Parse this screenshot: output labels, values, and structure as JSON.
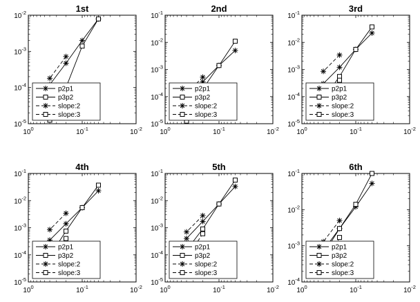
{
  "chart_data": {
    "type": "line",
    "layout": "2x3",
    "x_scale": "log",
    "y_scale": "log",
    "x_reversed": true,
    "grid": false,
    "legend_position": "bottom-left",
    "x_ticks": [
      {
        "value": 1,
        "base": "10",
        "exp": "0"
      },
      {
        "value": 0.1,
        "base": "10",
        "exp": "-1"
      },
      {
        "value": 0.01,
        "base": "10",
        "exp": "-2"
      }
    ],
    "legend": [
      {
        "label": "p2p1",
        "marker": "star",
        "line": "solid"
      },
      {
        "label": "p3p2",
        "marker": "square",
        "line": "solid"
      },
      {
        "label": "slope:2",
        "marker": "star",
        "line": "dashed"
      },
      {
        "label": "slope:3",
        "marker": "square",
        "line": "dashed"
      }
    ],
    "x": [
      0.05,
      0.1,
      0.2,
      0.4
    ],
    "panels": [
      {
        "title": "1st",
        "ylim": [
          1e-05,
          0.01
        ],
        "y_ticks": [
          {
            "value": 1e-05,
            "base": "10",
            "exp": "-5"
          },
          {
            "value": 0.0001,
            "base": "10",
            "exp": "-4"
          },
          {
            "value": 0.001,
            "base": "10",
            "exp": "-3"
          },
          {
            "value": 0.01,
            "base": "10",
            "exp": "-2"
          }
        ],
        "series": [
          {
            "name": "p2p1",
            "x": [
              0.05,
              0.1,
              0.2,
              0.4
            ],
            "y": [
              0.0079,
              0.002,
              0.00047,
              0.00012
            ]
          },
          {
            "name": "p3p2",
            "x": [
              0.05,
              0.1,
              0.2,
              0.4
            ],
            "y": [
              0.0079,
              0.0014,
              0.0001,
              2.2e-05
            ]
          },
          {
            "name": "slope:2",
            "x": [
              0.2,
              0.4
            ],
            "y": [
              0.00072,
              0.00018
            ]
          },
          {
            "name": "slope:3",
            "x": [
              0.2,
              0.4
            ],
            "y": [
              0.0001,
              1.25e-05
            ]
          }
        ]
      },
      {
        "title": "2nd",
        "ylim": [
          1e-05,
          0.1
        ],
        "y_ticks": [
          {
            "value": 1e-05,
            "base": "10",
            "exp": "-5"
          },
          {
            "value": 0.0001,
            "base": "10",
            "exp": "-4"
          },
          {
            "value": 0.001,
            "base": "10",
            "exp": "-3"
          },
          {
            "value": 0.01,
            "base": "10",
            "exp": "-2"
          },
          {
            "value": 0.1,
            "base": "10",
            "exp": "-1"
          }
        ],
        "series": [
          {
            "name": "p2p1",
            "x": [
              0.05,
              0.1,
              0.2,
              0.4
            ],
            "y": [
              0.005,
              0.0014,
              0.00035,
              9e-05
            ]
          },
          {
            "name": "p3p2",
            "x": [
              0.05,
              0.1,
              0.2,
              0.4
            ],
            "y": [
              0.011,
              0.0014,
              0.00019,
              2.4e-05
            ]
          },
          {
            "name": "slope:2",
            "x": [
              0.2,
              0.4
            ],
            "y": [
              0.00052,
              0.00013
            ]
          },
          {
            "name": "slope:3",
            "x": [
              0.2,
              0.4
            ],
            "y": [
              0.0001,
              1.25e-05
            ]
          }
        ]
      },
      {
        "title": "3rd",
        "ylim": [
          1e-05,
          0.1
        ],
        "y_ticks": [
          {
            "value": 1e-05,
            "base": "10",
            "exp": "-5"
          },
          {
            "value": 0.0001,
            "base": "10",
            "exp": "-4"
          },
          {
            "value": 0.001,
            "base": "10",
            "exp": "-3"
          },
          {
            "value": 0.01,
            "base": "10",
            "exp": "-2"
          },
          {
            "value": 0.1,
            "base": "10",
            "exp": "-1"
          }
        ],
        "series": [
          {
            "name": "p2p1",
            "x": [
              0.05,
              0.1,
              0.2,
              0.4
            ],
            "y": [
              0.022,
              0.0055,
              0.0012,
              0.0003
            ]
          },
          {
            "name": "p3p2",
            "x": [
              0.05,
              0.1,
              0.2,
              0.4
            ],
            "y": [
              0.037,
              0.0055,
              0.00055,
              8e-05
            ]
          },
          {
            "name": "slope:2",
            "x": [
              0.2,
              0.4
            ],
            "y": [
              0.0034,
              0.00085
            ]
          },
          {
            "name": "slope:3",
            "x": [
              0.2,
              0.4
            ],
            "y": [
              0.0004,
              5e-05
            ]
          }
        ]
      },
      {
        "title": "4th",
        "ylim": [
          1e-05,
          0.1
        ],
        "y_ticks": [
          {
            "value": 1e-05,
            "base": "10",
            "exp": "-5"
          },
          {
            "value": 0.0001,
            "base": "10",
            "exp": "-4"
          },
          {
            "value": 0.001,
            "base": "10",
            "exp": "-3"
          },
          {
            "value": 0.01,
            "base": "10",
            "exp": "-2"
          },
          {
            "value": 0.1,
            "base": "10",
            "exp": "-1"
          }
        ],
        "series": [
          {
            "name": "p2p1",
            "x": [
              0.05,
              0.1,
              0.2,
              0.4
            ],
            "y": [
              0.023,
              0.0055,
              0.0014,
              0.00035
            ]
          },
          {
            "name": "p3p2",
            "x": [
              0.05,
              0.1,
              0.2,
              0.4
            ],
            "y": [
              0.037,
              0.0055,
              0.00075,
              9e-05
            ]
          },
          {
            "name": "slope:2",
            "x": [
              0.2,
              0.4
            ],
            "y": [
              0.0034,
              0.00085
            ]
          },
          {
            "name": "slope:3",
            "x": [
              0.2,
              0.4
            ],
            "y": [
              0.0004,
              5e-05
            ]
          }
        ]
      },
      {
        "title": "5th",
        "ylim": [
          1e-05,
          0.1
        ],
        "y_ticks": [
          {
            "value": 1e-05,
            "base": "10",
            "exp": "-5"
          },
          {
            "value": 0.0001,
            "base": "10",
            "exp": "-4"
          },
          {
            "value": 0.001,
            "base": "10",
            "exp": "-3"
          },
          {
            "value": 0.01,
            "base": "10",
            "exp": "-2"
          },
          {
            "value": 0.1,
            "base": "10",
            "exp": "-1"
          }
        ],
        "series": [
          {
            "name": "p2p1",
            "x": [
              0.05,
              0.1,
              0.2,
              0.4
            ],
            "y": [
              0.033,
              0.0075,
              0.0017,
              0.0004
            ]
          },
          {
            "name": "p3p2",
            "x": [
              0.05,
              0.1,
              0.2,
              0.4
            ],
            "y": [
              0.057,
              0.0075,
              0.0009,
              0.00015
            ]
          },
          {
            "name": "slope:2",
            "x": [
              0.2,
              0.4
            ],
            "y": [
              0.0028,
              0.0007
            ]
          },
          {
            "name": "slope:3",
            "x": [
              0.2,
              0.4
            ],
            "y": [
              0.0006,
              7.5e-05
            ]
          }
        ]
      },
      {
        "title": "6th",
        "ylim": [
          0.0001,
          0.1
        ],
        "y_ticks": [
          {
            "value": 0.0001,
            "base": "10",
            "exp": "-4"
          },
          {
            "value": 0.001,
            "base": "10",
            "exp": "-3"
          },
          {
            "value": 0.01,
            "base": "10",
            "exp": "-2"
          },
          {
            "value": 0.1,
            "base": "10",
            "exp": "-1"
          }
        ],
        "series": [
          {
            "name": "p2p1",
            "x": [
              0.05,
              0.1,
              0.2,
              0.4
            ],
            "y": [
              0.053,
              0.012,
              0.003,
              0.00075
            ]
          },
          {
            "name": "p3p2",
            "x": [
              0.05,
              0.1,
              0.2,
              0.4
            ],
            "y": [
              0.1,
              0.014,
              0.003,
              0.00058
            ]
          },
          {
            "name": "slope:2",
            "x": [
              0.2,
              0.4
            ],
            "y": [
              0.005,
              0.0013
            ]
          },
          {
            "name": "slope:3",
            "x": [
              0.2,
              0.4
            ],
            "y": [
              0.0017,
              0.00021
            ]
          }
        ]
      }
    ]
  }
}
